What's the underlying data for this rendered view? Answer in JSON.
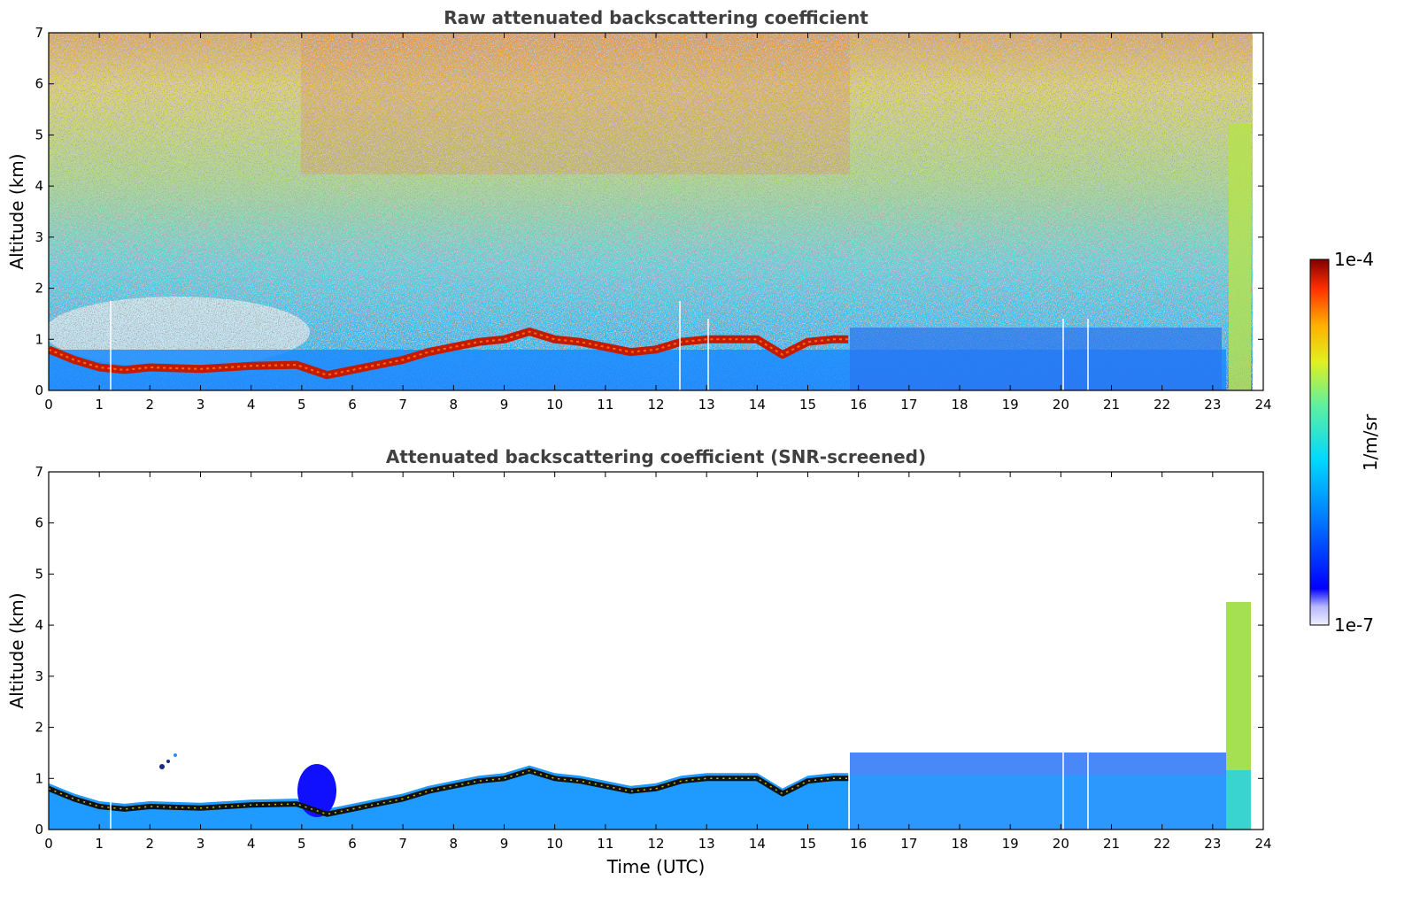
{
  "chart_data": [
    {
      "type": "heatmap",
      "title": "Raw attenuated backscattering coefficient",
      "xlabel": "",
      "ylabel": "Altitude (km)",
      "xlim": [
        0,
        24
      ],
      "ylim": [
        0,
        7
      ],
      "xticks": [
        0,
        1,
        2,
        3,
        4,
        5,
        6,
        7,
        8,
        9,
        10,
        11,
        12,
        13,
        14,
        15,
        16,
        17,
        18,
        19,
        20,
        21,
        22,
        23,
        24
      ],
      "yticks": [
        0,
        1,
        2,
        3,
        4,
        5,
        6,
        7
      ],
      "screened": false,
      "cloud_layer_km": [
        [
          0.0,
          0.8
        ],
        [
          0.5,
          0.6
        ],
        [
          1.0,
          0.45
        ],
        [
          1.5,
          0.4
        ],
        [
          2.0,
          0.45
        ],
        [
          3.0,
          0.42
        ],
        [
          4.0,
          0.48
        ],
        [
          4.9,
          0.5
        ],
        [
          5.5,
          0.3
        ],
        [
          6.0,
          0.4
        ],
        [
          6.5,
          0.5
        ],
        [
          7.0,
          0.6
        ],
        [
          7.5,
          0.75
        ],
        [
          8.0,
          0.85
        ],
        [
          8.5,
          0.95
        ],
        [
          9.0,
          1.0
        ],
        [
          9.5,
          1.15
        ],
        [
          10.0,
          1.0
        ],
        [
          10.5,
          0.95
        ],
        [
          11.0,
          0.85
        ],
        [
          11.5,
          0.75
        ],
        [
          12.0,
          0.8
        ],
        [
          12.5,
          0.95
        ],
        [
          13.0,
          1.0
        ],
        [
          13.5,
          1.0
        ],
        [
          14.0,
          1.0
        ],
        [
          14.5,
          0.7
        ],
        [
          15.0,
          0.95
        ],
        [
          15.5,
          1.0
        ],
        [
          15.8,
          1.0
        ]
      ]
    },
    {
      "type": "heatmap",
      "title": "Attenuated backscattering coefficient (SNR-screened)",
      "xlabel": "Time (UTC)",
      "ylabel": "Altitude (km)",
      "xlim": [
        0,
        24
      ],
      "ylim": [
        0,
        7
      ],
      "xticks": [
        0,
        1,
        2,
        3,
        4,
        5,
        6,
        7,
        8,
        9,
        10,
        11,
        12,
        13,
        14,
        15,
        16,
        17,
        18,
        19,
        20,
        21,
        22,
        23,
        24
      ],
      "yticks": [
        0,
        1,
        2,
        3,
        4,
        5,
        6,
        7
      ],
      "screened": true
    }
  ],
  "colorbar": {
    "label": "1/m/sr",
    "min_label": "1e-7",
    "max_label": "1e-4",
    "scale": "log",
    "colormap": "jet"
  }
}
